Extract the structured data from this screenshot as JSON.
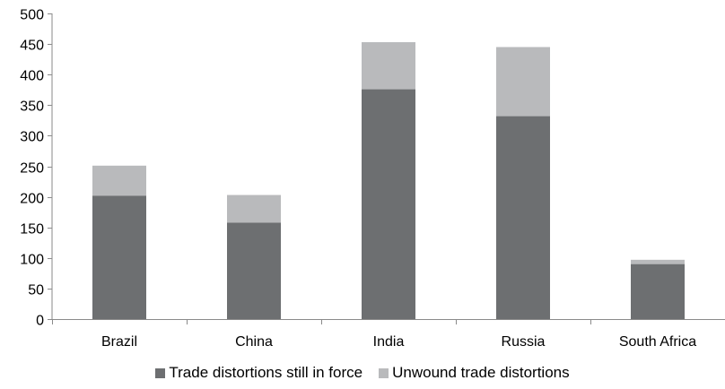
{
  "chart_data": {
    "type": "bar",
    "stacked": true,
    "categories": [
      "Brazil",
      "China",
      "India",
      "Russia",
      "South Africa"
    ],
    "series": [
      {
        "name": "Trade distortions still in force",
        "values": [
          202,
          158,
          376,
          332,
          90
        ],
        "color": "#6d6f71"
      },
      {
        "name": "Unwound trade distortions",
        "values": [
          49,
          45,
          77,
          113,
          7
        ],
        "color": "#b9babc"
      }
    ],
    "title": "",
    "xlabel": "",
    "ylabel": "",
    "ylim": [
      0,
      500
    ],
    "yticks": [
      "0",
      "50",
      "100",
      "150",
      "200",
      "250",
      "300",
      "350",
      "400",
      "450",
      "500"
    ],
    "grid": false,
    "legend_position": "bottom"
  }
}
